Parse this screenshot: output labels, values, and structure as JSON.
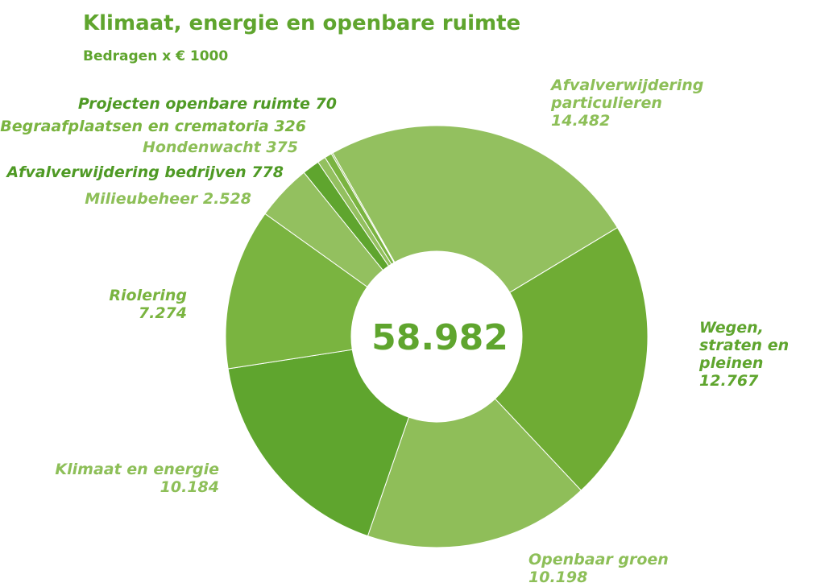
{
  "chart_data": {
    "type": "donut",
    "title": "Klimaat, energie en openbare ruimte",
    "subtitle": "Bedragen x € 1000",
    "center_label": "58.982",
    "categories": [
      "Afvalverwijdering particulieren",
      "Wegen, straten en pleinen",
      "Openbaar groen",
      "Klimaat en energie",
      "Riolering",
      "Milieubeheer",
      "Afvalverwijdering bedrijven",
      "Hondenwacht",
      "Begraafplaatsen en crematoria",
      "Projecten openbare ruimte"
    ],
    "values": [
      14482,
      12767,
      10198,
      10184,
      7274,
      2528,
      778,
      375,
      326,
      70
    ],
    "value_labels": [
      "14.482",
      "12.767",
      "10.198",
      "10.184",
      "7.274",
      "2.528",
      "778",
      "375",
      "326",
      "70"
    ],
    "colors": [
      "#93c05f",
      "#6fac34",
      "#8fbe59",
      "#5fa52e",
      "#7ab440",
      "#93c05f",
      "#5fa52e",
      "#93c05f",
      "#7ab440",
      "#93c05f"
    ]
  }
}
